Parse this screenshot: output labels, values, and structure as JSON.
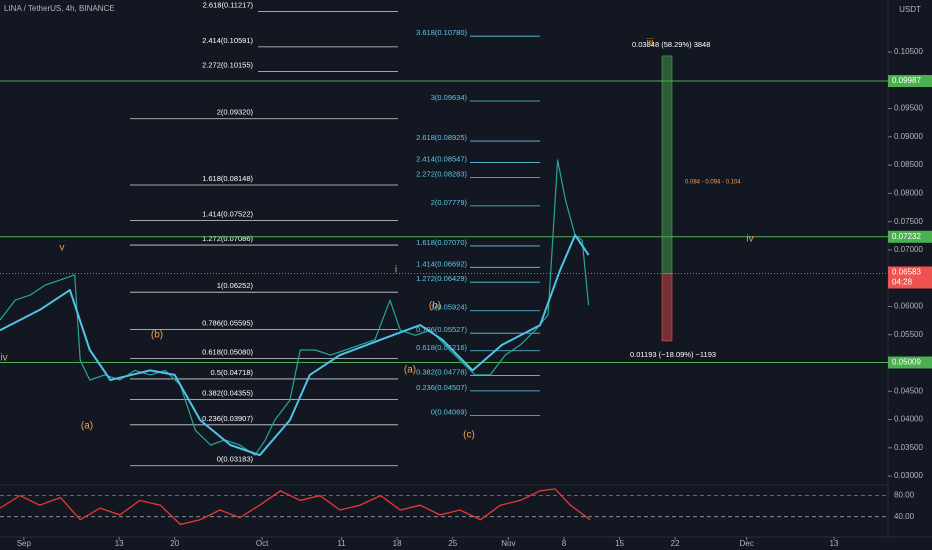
{
  "header": "LINA / TetherUS, 4h, BINANCE",
  "currency": "USDT",
  "chart_data": {
    "type": "line",
    "xlim": [
      -2,
      109.8
    ],
    "xticks": [
      {
        "value": 1,
        "label": "Sep"
      },
      13,
      20,
      {
        "value": 31,
        "label": "Oct"
      },
      {
        "value": 41,
        "label": "11"
      },
      {
        "value": 48,
        "label": "18"
      },
      {
        "value": 55,
        "label": "25"
      },
      {
        "value": 62,
        "label": "Nov"
      },
      {
        "value": 69,
        "label": "8"
      },
      {
        "value": 76,
        "label": "15"
      },
      {
        "value": 83,
        "label": "22"
      },
      {
        "value": 92,
        "label": "Dec"
      },
      {
        "value": 103,
        "label": "13"
      }
    ],
    "ylim": [
      0.0286,
      0.1142
    ],
    "yticks": [
      {
        "value": 0.105,
        "label": "0.10500"
      },
      {
        "value": 0.095,
        "label": "0.09500"
      },
      {
        "value": 0.09,
        "label": "0.09000"
      },
      {
        "value": 0.085,
        "label": "0.08500"
      },
      {
        "value": 0.08,
        "label": "0.08000"
      },
      {
        "value": 0.075,
        "label": "0.07500"
      },
      {
        "value": 0.07,
        "label": "0.07000"
      },
      {
        "value": 0.06,
        "label": "0.06000"
      },
      {
        "value": 0.055,
        "label": "0.05500"
      },
      {
        "value": 0.045,
        "label": "0.04500"
      },
      {
        "value": 0.04,
        "label": "0.04000"
      },
      {
        "value": 0.035,
        "label": "0.03500"
      },
      {
        "value": 0.03,
        "label": "0.03000"
      }
    ],
    "grid": false,
    "series": [
      {
        "color": "#26a69a",
        "x": [
          -2.0,
          -0.1,
          1.8,
          3.7,
          5.6,
          7.4,
          8.1,
          9.3,
          11.2,
          13.1,
          15.0,
          16.9,
          18.8,
          20.7,
          22.6,
          24.5,
          26.3,
          28.2,
          30.1,
          31.4,
          32.6,
          34.5,
          35.8,
          37.7,
          39.6,
          41.5,
          43.3,
          45.2,
          47.1,
          48.4,
          50.3,
          52.2,
          54.0,
          55.9,
          57.8,
          59.7,
          61.6,
          63.5,
          65.4,
          67.0,
          68.2,
          69.2,
          70.4,
          71.3,
          72.1
        ],
        "values": [
          0.0576,
          0.0611,
          0.062,
          0.0638,
          0.0647,
          0.0656,
          0.0505,
          0.047,
          0.0479,
          0.047,
          0.0487,
          0.0479,
          0.0487,
          0.0461,
          0.0381,
          0.0355,
          0.0364,
          0.0355,
          0.0337,
          0.0364,
          0.0399,
          0.0434,
          0.0523,
          0.0523,
          0.0514,
          0.0523,
          0.0532,
          0.0541,
          0.0611,
          0.0558,
          0.0549,
          0.0558,
          0.0532,
          0.0505,
          0.0479,
          0.0479,
          0.0514,
          0.0532,
          0.0558,
          0.0585,
          0.0859,
          0.0788,
          0.0726,
          0.0717,
          0.0602
        ]
      },
      {
        "color": "#4fc3e8",
        "x": [
          -2.0,
          3.0,
          6.8,
          9.3,
          11.9,
          16.9,
          20.0,
          23.2,
          27.0,
          30.7,
          34.5,
          37.0,
          40.8,
          45.9,
          50.9,
          53.7,
          57.5,
          61.2,
          66.0,
          68.5,
          70.4,
          72.1
        ],
        "values": [
          0.0558,
          0.0594,
          0.0629,
          0.0523,
          0.047,
          0.0487,
          0.0479,
          0.0399,
          0.0355,
          0.0337,
          0.0399,
          0.0479,
          0.0514,
          0.0541,
          0.0567,
          0.0541,
          0.0487,
          0.0532,
          0.0567,
          0.0664,
          0.0726,
          0.0691
        ]
      }
    ],
    "levels": [
      {
        "label": "0.09987",
        "value": 0.09987,
        "color": "#4caf50"
      },
      {
        "label": "0.07232",
        "value": 0.07232,
        "color": "#4caf50"
      },
      {
        "label": "0.05009",
        "value": 0.05009,
        "color": "#4caf50"
      }
    ],
    "last_price": {
      "label": "0.06583",
      "value": 0.06583,
      "countdown": "04:28",
      "color": "#ef5350"
    },
    "fib_left": [
      {
        "label": "2.618(0.11217)",
        "value": 0.11217
      },
      {
        "label": "2.414(0.10591)",
        "value": 0.10591
      },
      {
        "label": "2.272(0.10155)",
        "value": 0.10155
      },
      {
        "label": "2(0.09320)",
        "value": 0.0932
      },
      {
        "label": "1.618(0.08148)",
        "value": 0.08148
      },
      {
        "label": "1.414(0.07522)",
        "value": 0.07522
      },
      {
        "label": "1.272(0.07086)",
        "value": 0.07086
      },
      {
        "label": "1(0.06252)",
        "value": 0.06252
      },
      {
        "label": "0.786(0.05595)",
        "value": 0.05595
      },
      {
        "label": "0.618(0.05080)",
        "value": 0.0508
      },
      {
        "label": "0.5(0.04718)",
        "value": 0.04718
      },
      {
        "label": "0.382(0.04355)",
        "value": 0.04355
      },
      {
        "label": "0.236(0.03907)",
        "value": 0.03907
      },
      {
        "label": "0(0.03183)",
        "value": 0.03183
      }
    ],
    "fib_right": [
      {
        "label": "3.618(0.10780)",
        "value": 0.1078
      },
      {
        "label": "3(0.09634)",
        "value": 0.09634
      },
      {
        "label": "2.618(0.08925)",
        "value": 0.08925
      },
      {
        "label": "2.414(0.08547)",
        "value": 0.08547
      },
      {
        "label": "2.272(0.08283)",
        "value": 0.08283
      },
      {
        "label": "2(0.07779)",
        "value": 0.07779
      },
      {
        "label": "1.618(0.07070)",
        "value": 0.0707
      },
      {
        "label": "1.414(0.06692)",
        "value": 0.06692
      },
      {
        "label": "1.272(0.06429)",
        "value": 0.06429
      },
      {
        "label": "1(0.05924)",
        "value": 0.05924
      },
      {
        "label": "0.786(0.05527)",
        "value": 0.05527
      },
      {
        "label": "0.618(0.05216)",
        "value": 0.05216
      },
      {
        "label": "0.382(0.04778)",
        "value": 0.04778
      },
      {
        "label": "0.236(0.04507)",
        "value": 0.04507
      },
      {
        "label": "0(0.04069)",
        "value": 0.04069
      }
    ],
    "position": {
      "entry": 0.06583,
      "target_move": 0.03848,
      "target_label": "0.03848 (58.29%) 3848",
      "stop_move": 0.01193,
      "stop_label": "0.01193 (−18.09%) −1193",
      "targets_label": "0.084 - 0.094 - 0.104"
    },
    "waves": [
      "v",
      "(b)",
      "(a)",
      "(b)",
      "(a)",
      "(c)",
      "iv",
      "iv",
      "iii",
      "i"
    ],
    "rsi": {
      "ylim": [
        3.6,
        98.2
      ],
      "yticks": [
        {
          "value": 80,
          "label": "80.00"
        },
        {
          "value": 40,
          "label": "40.00"
        }
      ],
      "color": "#e53935",
      "x": [
        -2.0,
        0.5,
        3.0,
        5.6,
        8.1,
        10.6,
        13.1,
        15.6,
        18.2,
        20.7,
        23.2,
        25.7,
        28.2,
        30.7,
        33.3,
        35.8,
        38.3,
        40.8,
        43.3,
        45.9,
        48.4,
        50.9,
        53.4,
        55.9,
        58.5,
        61.0,
        63.5,
        66.0,
        67.9,
        69.8,
        72.3
      ],
      "values": [
        56.4,
        80,
        61.8,
        76.4,
        34.5,
        56.4,
        43.6,
        70.9,
        61.8,
        25.5,
        34.5,
        52.7,
        38.2,
        61.8,
        89.1,
        70.9,
        80,
        52.7,
        61.8,
        80,
        52.7,
        61.8,
        43.6,
        52.7,
        34.5,
        61.8,
        70.9,
        89.1,
        92.7,
        61.8,
        34.5
      ]
    }
  }
}
